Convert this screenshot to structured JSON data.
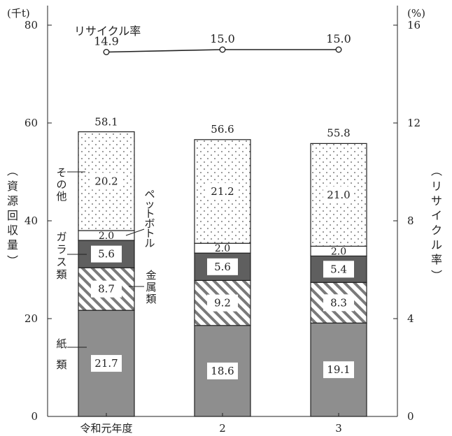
{
  "chart_data": {
    "type": "bar",
    "categories": [
      "令和元年度",
      "2",
      "3"
    ],
    "left_axis": {
      "unit": "(千t)",
      "label": [
        "資",
        "源",
        "回",
        "収",
        "量"
      ],
      "ticks": [
        0,
        20,
        40,
        60,
        80
      ],
      "ylim": [
        0,
        84
      ]
    },
    "right_axis": {
      "unit": "(%)",
      "label": [
        "リ",
        "サ",
        "イ",
        "ク",
        "ル",
        "率"
      ],
      "ticks": [
        0,
        4,
        8,
        12,
        16
      ],
      "ylim": [
        0,
        16.8
      ]
    },
    "series": [
      {
        "name": "紙類",
        "values": [
          21.7,
          18.6,
          19.1
        ]
      },
      {
        "name": "金属類",
        "values": [
          8.7,
          9.2,
          8.3
        ]
      },
      {
        "name": "ガラス類",
        "values": [
          5.6,
          5.6,
          5.4
        ]
      },
      {
        "name": "ペットボトル",
        "values": [
          2.0,
          2.0,
          2.0
        ]
      },
      {
        "name": "その他",
        "values": [
          20.2,
          21.2,
          21.0
        ]
      }
    ],
    "value_labels": [
      [
        "21.7",
        "8.7",
        "5.6",
        "2.0",
        "20.2"
      ],
      [
        "18.6",
        "9.2",
        "5.6",
        "2.0",
        "21.2"
      ],
      [
        "19.1",
        "8.3",
        "5.4",
        "2.0",
        "21.0"
      ]
    ],
    "totals": [
      58.1,
      56.6,
      55.8
    ],
    "total_labels": [
      "58.1",
      "56.6",
      "55.8"
    ],
    "recycling_rate": {
      "name": "リサイクル率",
      "values": [
        14.9,
        15.0,
        15.0
      ],
      "labels": [
        "14.9",
        "15.0",
        "15.0"
      ]
    },
    "legend_labels": {
      "other": [
        "そ",
        "の",
        "他"
      ],
      "pet": [
        "ペ",
        "ッ",
        "ト",
        "ボ",
        "ト",
        "ル"
      ],
      "glass": [
        "ガ",
        "ラ",
        "ス",
        "類"
      ],
      "metal": [
        "金",
        "属",
        "類"
      ],
      "paper": [
        "紙",
        "類"
      ]
    },
    "colors": {
      "paper": "#8e8e8e",
      "metal_stripe": "#7a7a7a",
      "glass": "#5f5f5f",
      "pet": "#ffffff",
      "other_dots": "#555555",
      "line": "#222222"
    }
  }
}
